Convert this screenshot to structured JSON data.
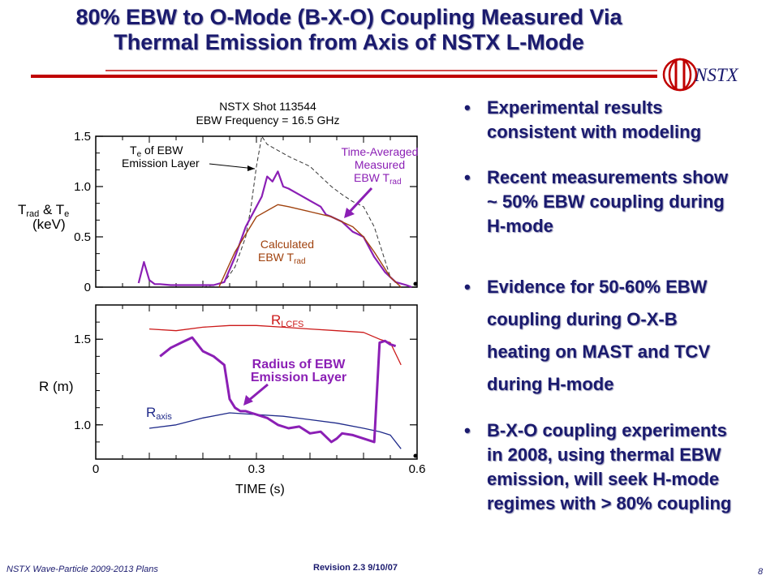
{
  "slide": {
    "title_line1": "80% EBW to O-Mode (B-X-O) Coupling Measured Via",
    "title_line2": "Thermal Emission from Axis of NSTX L-Mode",
    "logo_text": "NSTX",
    "footer_left": "NSTX Wave-Particle 2009-2013 Plans",
    "footer_revision": "Revision 2.3  9/10/07",
    "page_number": "8"
  },
  "bullets": [
    {
      "lines": [
        "Experimental results",
        "consistent with modeling"
      ]
    },
    {
      "lines": [
        "Recent measurements show",
        "~ 50% EBW coupling during",
        "H-mode"
      ]
    },
    {
      "lines": [
        "Evidence for 50-60% EBW",
        "coupling during O-X-B",
        "heating on MAST and TCV",
        "during H-mode"
      ]
    },
    {
      "lines": [
        "B-X-O coupling experiments",
        "in 2008, using thermal EBW",
        "emission, will seek H-mode",
        "regimes with > 80% coupling"
      ]
    }
  ],
  "chart_data": [
    {
      "type": "line",
      "title": "NSTX Shot 113544",
      "subtitle": "EBW Frequency = 16.5 GHz",
      "ylabel_parts": {
        "main": "T",
        "sub": "rad",
        "mid": " & T",
        "sub2": "e",
        "unit": "(keV)"
      },
      "xlim": [
        0,
        0.6
      ],
      "ylim": [
        0,
        1.5
      ],
      "yticks": [
        "0",
        "0.5",
        "1.0",
        "1.5"
      ],
      "annotations": {
        "te": {
          "line1_main": "T",
          "line1_sub": "e",
          "line1_rest": " of EBW",
          "line2": "Emission Layer"
        },
        "measured": {
          "line1": "Time-Averaged",
          "line2": "Measured",
          "line3_main": "EBW T",
          "line3_sub": "rad"
        },
        "calculated": {
          "line1": "Calculated",
          "line2_main": "EBW T",
          "line2_sub": "rad"
        }
      },
      "colors": {
        "measured": "#8b1fb5",
        "calculated": "#a0420e",
        "te": "#333333"
      },
      "series": [
        {
          "name": "Te of EBW Emission Layer",
          "x": [
            0.2,
            0.22,
            0.24,
            0.26,
            0.28,
            0.29,
            0.3,
            0.31,
            0.32,
            0.34,
            0.36,
            0.38,
            0.4,
            0.42,
            0.44,
            0.46,
            0.48,
            0.5,
            0.52,
            0.55,
            0.57
          ],
          "y": [
            0.0,
            0.02,
            0.05,
            0.2,
            0.5,
            0.8,
            1.2,
            1.5,
            1.42,
            1.36,
            1.3,
            1.25,
            1.2,
            1.1,
            1.0,
            0.92,
            0.85,
            0.8,
            0.6,
            0.1,
            0.0
          ]
        },
        {
          "name": "Time-Averaged Measured EBW Trad",
          "x": [
            0.08,
            0.09,
            0.1,
            0.11,
            0.12,
            0.14,
            0.16,
            0.18,
            0.2,
            0.22,
            0.24,
            0.26,
            0.27,
            0.28,
            0.29,
            0.3,
            0.31,
            0.32,
            0.33,
            0.34,
            0.35,
            0.36,
            0.38,
            0.4,
            0.42,
            0.43,
            0.44,
            0.46,
            0.48,
            0.5,
            0.52,
            0.54,
            0.56,
            0.58,
            0.59
          ],
          "y": [
            0.04,
            0.25,
            0.07,
            0.03,
            0.03,
            0.02,
            0.02,
            0.02,
            0.02,
            0.02,
            0.05,
            0.3,
            0.45,
            0.6,
            0.7,
            0.8,
            0.9,
            1.1,
            1.05,
            1.15,
            1.0,
            0.98,
            0.92,
            0.86,
            0.8,
            0.72,
            0.7,
            0.65,
            0.55,
            0.5,
            0.3,
            0.15,
            0.05,
            0.02,
            0.0
          ]
        },
        {
          "name": "Calculated EBW Trad",
          "x": [
            0.23,
            0.26,
            0.3,
            0.34,
            0.36,
            0.4,
            0.44,
            0.48,
            0.5,
            0.52,
            0.55,
            0.57
          ],
          "y": [
            0.0,
            0.35,
            0.7,
            0.82,
            0.8,
            0.75,
            0.7,
            0.6,
            0.5,
            0.35,
            0.1,
            0.0
          ]
        }
      ]
    },
    {
      "type": "line",
      "xlabel_main": "TIME",
      "xlabel_unit": "(s)",
      "ylabel": "R (m)",
      "xlim": [
        0,
        0.6
      ],
      "ylim": [
        0.8,
        1.7
      ],
      "xticks": [
        "0",
        "0.3",
        "0.6"
      ],
      "yticks": [
        "1.0",
        "1.5"
      ],
      "annotations": {
        "rlcfs": {
          "main": "R",
          "sub": "LCFS"
        },
        "raxis": {
          "main": "R",
          "sub": "axis"
        },
        "radius": {
          "line1": "Radius of EBW",
          "line2": "Emission Layer"
        }
      },
      "colors": {
        "rlcfs": "#cc1a1a",
        "raxis": "#1f2a8a",
        "radius": "#8b1fb5"
      },
      "series": [
        {
          "name": "R LCFS",
          "x": [
            0.1,
            0.15,
            0.2,
            0.25,
            0.3,
            0.35,
            0.4,
            0.45,
            0.5,
            0.53,
            0.55,
            0.57
          ],
          "y": [
            1.56,
            1.55,
            1.57,
            1.58,
            1.58,
            1.57,
            1.56,
            1.55,
            1.54,
            1.5,
            1.48,
            1.35
          ]
        },
        {
          "name": "R axis",
          "x": [
            0.1,
            0.15,
            0.2,
            0.25,
            0.3,
            0.35,
            0.4,
            0.45,
            0.5,
            0.53,
            0.55,
            0.57
          ],
          "y": [
            0.98,
            1.0,
            1.04,
            1.07,
            1.06,
            1.05,
            1.03,
            1.01,
            0.98,
            0.96,
            0.94,
            0.86
          ]
        },
        {
          "name": "Radius of EBW Emission Layer",
          "x": [
            0.12,
            0.14,
            0.16,
            0.18,
            0.2,
            0.22,
            0.24,
            0.25,
            0.26,
            0.27,
            0.28,
            0.29,
            0.3,
            0.32,
            0.34,
            0.36,
            0.38,
            0.4,
            0.42,
            0.44,
            0.45,
            0.46,
            0.48,
            0.5,
            0.52,
            0.53,
            0.54,
            0.55,
            0.56
          ],
          "y": [
            1.4,
            1.45,
            1.48,
            1.51,
            1.43,
            1.4,
            1.35,
            1.15,
            1.1,
            1.08,
            1.08,
            1.07,
            1.06,
            1.04,
            1.0,
            0.98,
            0.99,
            0.95,
            0.96,
            0.9,
            0.92,
            0.95,
            0.94,
            0.92,
            0.9,
            1.48,
            1.49,
            1.47,
            1.46
          ]
        }
      ]
    }
  ]
}
